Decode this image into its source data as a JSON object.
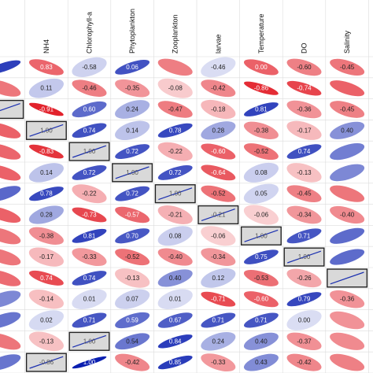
{
  "chart_data": {
    "type": "heatmap",
    "style": "correlation-matrix-ellipses",
    "columns": [
      "NH4",
      "Chlorophyll-a",
      "Phytoplankton",
      "Zooplankton",
      "larvae",
      "Temperature",
      "DO",
      "Salinity"
    ],
    "colors": {
      "positive": "#0a1fb0",
      "negative": "#e0101a",
      "diagonal_box": "#d9d9d9",
      "diagonal_line": "#1a2fb0"
    },
    "color_scale": [
      -1,
      1
    ],
    "rows": [
      [
        0.83,
        -0.58,
        0.06,
        0.73,
        -0.46,
        0.0,
        -0.6,
        -0.45,
        -0.5
      ],
      [
        -0.5,
        0.11,
        -0.46,
        -0.35,
        -0.08,
        -0.42,
        -0.86,
        -0.74,
        -0.6
      ],
      [
        1.0,
        -0.91,
        0.6,
        0.24,
        -0.47,
        -0.18,
        0.81,
        -0.36,
        -0.45
      ],
      [
        -0.6,
        1.0,
        0.74,
        0.14,
        0.78,
        0.28,
        -0.38,
        -0.17,
        0.4
      ],
      [
        -0.58,
        -0.83,
        1.0,
        0.72,
        -0.22,
        -0.6,
        -0.52,
        0.74,
        0.5
      ],
      [
        -0.6,
        0.14,
        0.72,
        1.0,
        0.72,
        -0.64,
        0.08,
        -0.13,
        0.45
      ],
      [
        0.62,
        0.78,
        -0.22,
        0.72,
        1.0,
        -0.52,
        0.05,
        -0.45,
        -0.5
      ],
      [
        -0.6,
        0.28,
        -0.73,
        -0.57,
        -0.21,
        -0.21,
        -0.06,
        -0.34,
        -0.4
      ],
      [
        -0.5,
        -0.38,
        0.81,
        0.7,
        0.08,
        -0.06,
        1.0,
        0.71,
        0.6
      ],
      [
        -0.5,
        -0.17,
        -0.33,
        -0.52,
        -0.4,
        -0.34,
        0.75,
        1.0,
        0.6
      ],
      [
        -0.55,
        -0.71,
        0.74,
        -0.13,
        0.4,
        0.12,
        -0.53,
        -0.26,
        1.0
      ],
      [
        0.45,
        -0.14,
        0.01,
        0.07,
        0.01,
        -0.71,
        -0.6,
        0.79,
        -0.36
      ],
      [
        0.55,
        0.02,
        0.71,
        0.59,
        0.67,
        0.71,
        0.71,
        0.0,
        -0.36
      ],
      [
        -0.5,
        -0.13,
        1.0,
        0.54,
        0.84,
        0.24,
        0.4,
        -0.37,
        -0.4
      ],
      [
        0.55,
        -0.86,
        1.0,
        -0.42,
        0.85,
        -0.33,
        0.43,
        -0.42,
        -0.45
      ]
    ],
    "diagonal": [
      [
        2,
        0
      ],
      [
        3,
        1
      ],
      [
        4,
        2
      ],
      [
        5,
        3
      ],
      [
        6,
        4
      ],
      [
        7,
        5
      ],
      [
        8,
        6
      ],
      [
        9,
        7
      ],
      [
        10,
        8
      ],
      [
        13,
        2
      ],
      [
        14,
        1
      ]
    ],
    "shown_labels": [
      [
        0,
        1,
        "0.83"
      ],
      [
        0,
        2,
        "-0.58"
      ],
      [
        0,
        3,
        "0.06"
      ],
      [
        0,
        5,
        "-0.46"
      ],
      [
        0,
        6,
        "0.00"
      ],
      [
        0,
        7,
        "-0.60"
      ],
      [
        0,
        8,
        "-0.45"
      ],
      [
        1,
        1,
        "0.11"
      ],
      [
        1,
        2,
        "-0.46"
      ],
      [
        1,
        3,
        "-0.35"
      ],
      [
        1,
        4,
        "-0.08"
      ],
      [
        1,
        5,
        "-0.42"
      ],
      [
        1,
        6,
        "-0.86"
      ],
      [
        1,
        7,
        "-0.74"
      ],
      [
        2,
        1,
        "-0.91"
      ],
      [
        2,
        2,
        "0.60"
      ],
      [
        2,
        3,
        "0.24"
      ],
      [
        2,
        4,
        "-0.47"
      ],
      [
        2,
        5,
        "-0.18"
      ],
      [
        2,
        6,
        "0.81"
      ],
      [
        2,
        7,
        "-0.36"
      ],
      [
        2,
        8,
        "-0.45"
      ],
      [
        3,
        1,
        "1.00"
      ],
      [
        3,
        2,
        "0.74"
      ],
      [
        3,
        3,
        "0.14"
      ],
      [
        3,
        4,
        "0.78"
      ],
      [
        3,
        5,
        "0.28"
      ],
      [
        3,
        6,
        "-0.38"
      ],
      [
        3,
        7,
        "-0.17"
      ],
      [
        3,
        8,
        "0.40"
      ],
      [
        4,
        1,
        "-0.83"
      ],
      [
        4,
        2,
        "1.00"
      ],
      [
        4,
        3,
        "0.72"
      ],
      [
        4,
        4,
        "-0.22"
      ],
      [
        4,
        5,
        "-0.60"
      ],
      [
        4,
        6,
        "-0.52"
      ],
      [
        4,
        7,
        "0.74"
      ],
      [
        5,
        1,
        "0.14"
      ],
      [
        5,
        2,
        "0.72"
      ],
      [
        5,
        3,
        "1.00"
      ],
      [
        5,
        4,
        "0.72"
      ],
      [
        5,
        5,
        "-0.64"
      ],
      [
        5,
        6,
        "0.08"
      ],
      [
        5,
        7,
        "-0.13"
      ],
      [
        6,
        1,
        "0.78"
      ],
      [
        6,
        2,
        "-0.22"
      ],
      [
        6,
        3,
        "0.72"
      ],
      [
        6,
        4,
        "1.00"
      ],
      [
        6,
        5,
        "-0.52"
      ],
      [
        6,
        6,
        "0.05"
      ],
      [
        6,
        7,
        "-0.45"
      ],
      [
        7,
        1,
        "0.28"
      ],
      [
        7,
        2,
        "-0.73"
      ],
      [
        7,
        3,
        "-0.57"
      ],
      [
        7,
        4,
        "-0.21"
      ],
      [
        7,
        5,
        "-0.21"
      ],
      [
        7,
        6,
        "-0.06"
      ],
      [
        7,
        7,
        "-0.34"
      ],
      [
        7,
        8,
        "-0.40"
      ],
      [
        8,
        1,
        "-0.38"
      ],
      [
        8,
        2,
        "0.81"
      ],
      [
        8,
        3,
        "0.70"
      ],
      [
        8,
        4,
        "0.08"
      ],
      [
        8,
        5,
        "-0.06"
      ],
      [
        8,
        6,
        "1.00"
      ],
      [
        8,
        7,
        "0.71"
      ],
      [
        9,
        1,
        "-0.17"
      ],
      [
        9,
        2,
        "-0.33"
      ],
      [
        9,
        3,
        "-0.52"
      ],
      [
        9,
        4,
        "-0.40"
      ],
      [
        9,
        5,
        "-0.34"
      ],
      [
        9,
        6,
        "0.75"
      ],
      [
        9,
        7,
        "1.00"
      ],
      [
        10,
        1,
        "0.74"
      ],
      [
        10,
        2,
        "0.74"
      ],
      [
        10,
        3,
        "-0.13"
      ],
      [
        10,
        4,
        "0.40"
      ],
      [
        10,
        5,
        "0.12"
      ],
      [
        10,
        6,
        "-0.53"
      ],
      [
        10,
        7,
        "-0.26"
      ],
      [
        11,
        1,
        "-0.14"
      ],
      [
        11,
        2,
        "0.01"
      ],
      [
        11,
        3,
        "0.07"
      ],
      [
        11,
        4,
        "0.01"
      ],
      [
        11,
        5,
        "-0.71"
      ],
      [
        11,
        6,
        "-0.60"
      ],
      [
        11,
        7,
        "0.79"
      ],
      [
        11,
        8,
        "-0.36"
      ],
      [
        12,
        1,
        "0.02"
      ],
      [
        12,
        2,
        "0.71"
      ],
      [
        12,
        3,
        "0.59"
      ],
      [
        12,
        4,
        "0.67"
      ],
      [
        12,
        5,
        "0.71"
      ],
      [
        12,
        6,
        "0.71"
      ],
      [
        12,
        7,
        "0.00"
      ],
      [
        13,
        1,
        "-0.13"
      ],
      [
        13,
        2,
        "1.00"
      ],
      [
        13,
        3,
        "0.54"
      ],
      [
        13,
        4,
        "0.84"
      ],
      [
        13,
        5,
        "0.24"
      ],
      [
        13,
        6,
        "0.40"
      ],
      [
        13,
        7,
        "-0.37"
      ],
      [
        14,
        1,
        "-0.86"
      ],
      [
        14,
        2,
        "1.00"
      ],
      [
        14,
        3,
        "-0.42"
      ],
      [
        14,
        4,
        "0.85"
      ],
      [
        14,
        5,
        "-0.33"
      ],
      [
        14,
        6,
        "0.43"
      ],
      [
        14,
        7,
        "-0.42"
      ]
    ]
  }
}
